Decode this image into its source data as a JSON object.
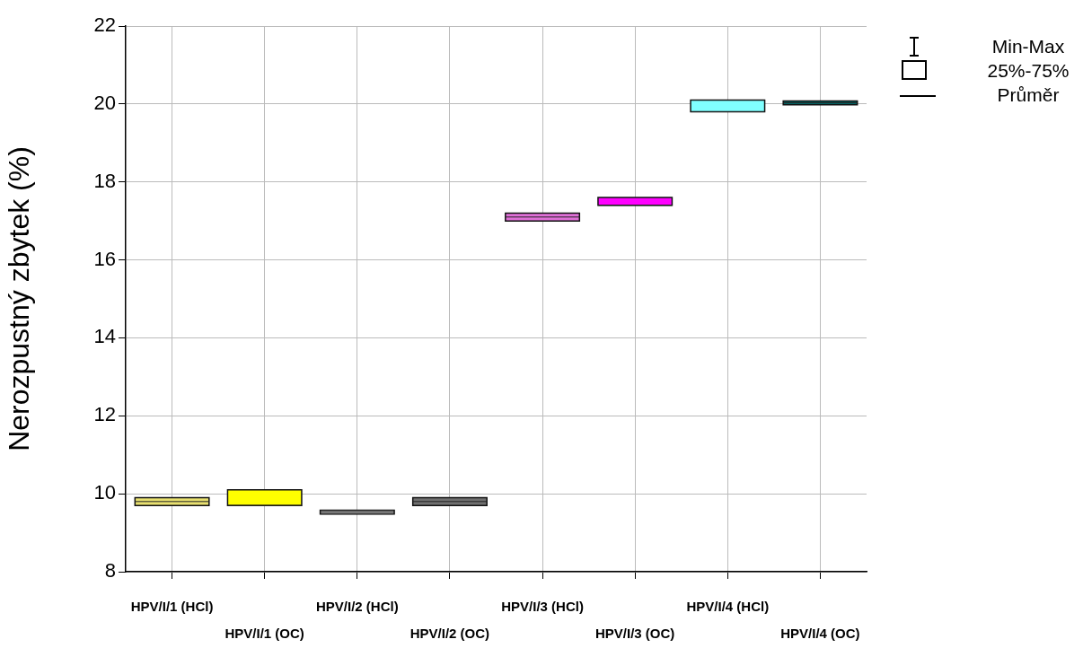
{
  "chart_data": {
    "type": "box",
    "ylabel": "Nerozpustný zbytek (%)",
    "categories": [
      "HPV/I/1 (HCl)",
      "HPV/I/1 (OC)",
      "HPV/I/2 (HCl)",
      "HPV/I/2 (OC)",
      "HPV/I/3 (HCl)",
      "HPV/I/3 (OC)",
      "HPV/I/4 (HCl)",
      "HPV/I/4 (OC)"
    ],
    "colors": [
      "#e8e070",
      "#ffff00",
      "#c8c8c8",
      "#707070",
      "#e070d8",
      "#ff00ff",
      "#80ffff",
      "#006868"
    ],
    "boxes": [
      {
        "low": 9.7,
        "q1": 9.7,
        "median": 9.8,
        "q3": 9.9,
        "high": 9.9,
        "mean": 9.8
      },
      {
        "low": 9.7,
        "q1": 9.7,
        "median": 9.7,
        "q3": 10.1,
        "high": 10.1,
        "mean": 9.7
      },
      {
        "low": 9.48,
        "q1": 9.48,
        "median": 9.53,
        "q3": 9.58,
        "high": 9.58,
        "mean": 9.53
      },
      {
        "low": 9.7,
        "q1": 9.7,
        "median": 9.8,
        "q3": 9.9,
        "high": 9.9,
        "mean": 9.8
      },
      {
        "low": 17.0,
        "q1": 17.0,
        "median": 17.1,
        "q3": 17.2,
        "high": 17.2,
        "mean": 17.1
      },
      {
        "low": 17.4,
        "q1": 17.4,
        "median": 17.4,
        "q3": 17.6,
        "high": 17.6,
        "mean": 17.4
      },
      {
        "low": 19.8,
        "q1": 19.8,
        "median": 19.8,
        "q3": 20.1,
        "high": 20.1,
        "mean": 19.8
      },
      {
        "low": 19.98,
        "q1": 19.98,
        "median": 20.03,
        "q3": 20.08,
        "high": 20.08,
        "mean": 20.03
      }
    ],
    "ylim": [
      8,
      22
    ],
    "yticks": [
      8,
      10,
      12,
      14,
      16,
      18,
      20,
      22
    ],
    "grid": true,
    "annotations": [
      "Min-Max",
      "25%-75%",
      "Průměr"
    ]
  }
}
